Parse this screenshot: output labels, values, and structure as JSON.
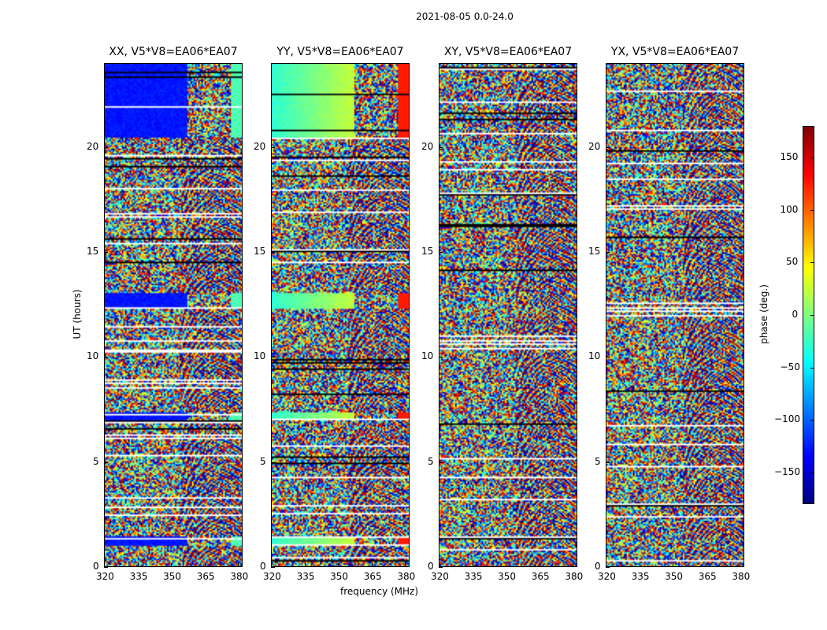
{
  "figure_title": "2021-08-05 0.0-24.0",
  "chart_data": [
    {
      "type": "heatmap",
      "title": "XX, V5*V8=EA06*EA07",
      "xlabel": "frequency (MHz)",
      "ylabel": "UT (hours)",
      "xlim": [
        320,
        382
      ],
      "ylim": [
        0,
        24
      ],
      "xticks": [
        "320",
        "335",
        "350",
        "365",
        "380"
      ],
      "yticks": [
        "0",
        "5",
        "10",
        "15",
        "20"
      ],
      "value_label": "phase (deg.)",
      "value_range": [
        -180,
        180
      ]
    },
    {
      "type": "heatmap",
      "title": "YY, V5*V8=EA06*EA07",
      "xlabel": "frequency (MHz)",
      "ylabel": "UT (hours)",
      "xlim": [
        320,
        382
      ],
      "ylim": [
        0,
        24
      ],
      "xticks": [
        "320",
        "335",
        "350",
        "365",
        "380"
      ],
      "yticks": [
        "0",
        "5",
        "10",
        "15",
        "20"
      ],
      "value_label": "phase (deg.)",
      "value_range": [
        -180,
        180
      ]
    },
    {
      "type": "heatmap",
      "title": "XY, V5*V8=EA06*EA07",
      "xlabel": "frequency (MHz)",
      "ylabel": "UT (hours)",
      "xlim": [
        320,
        382
      ],
      "ylim": [
        0,
        24
      ],
      "xticks": [
        "320",
        "335",
        "350",
        "365",
        "380"
      ],
      "yticks": [
        "0",
        "5",
        "10",
        "15",
        "20"
      ],
      "value_label": "phase (deg.)",
      "value_range": [
        -180,
        180
      ]
    },
    {
      "type": "heatmap",
      "title": "YX, V5*V8=EA06*EA07",
      "xlabel": "frequency (MHz)",
      "ylabel": "UT (hours)",
      "xlim": [
        320,
        382
      ],
      "ylim": [
        0,
        24
      ],
      "xticks": [
        "320",
        "335",
        "350",
        "365",
        "380"
      ],
      "yticks": [
        "0",
        "5",
        "10",
        "15",
        "20"
      ],
      "value_label": "phase (deg.)",
      "value_range": [
        -180,
        180
      ]
    }
  ],
  "colorbar": {
    "label": "phase (deg.)",
    "ticks": [
      "150",
      "100",
      "50",
      "0",
      "−50",
      "−100",
      "−150"
    ],
    "tick_values": [
      150,
      100,
      50,
      0,
      -50,
      -100,
      -150
    ],
    "range": [
      -180,
      180
    ]
  },
  "labels": {
    "xlabel": "frequency (MHz)",
    "ylabel": "UT (hours)"
  }
}
